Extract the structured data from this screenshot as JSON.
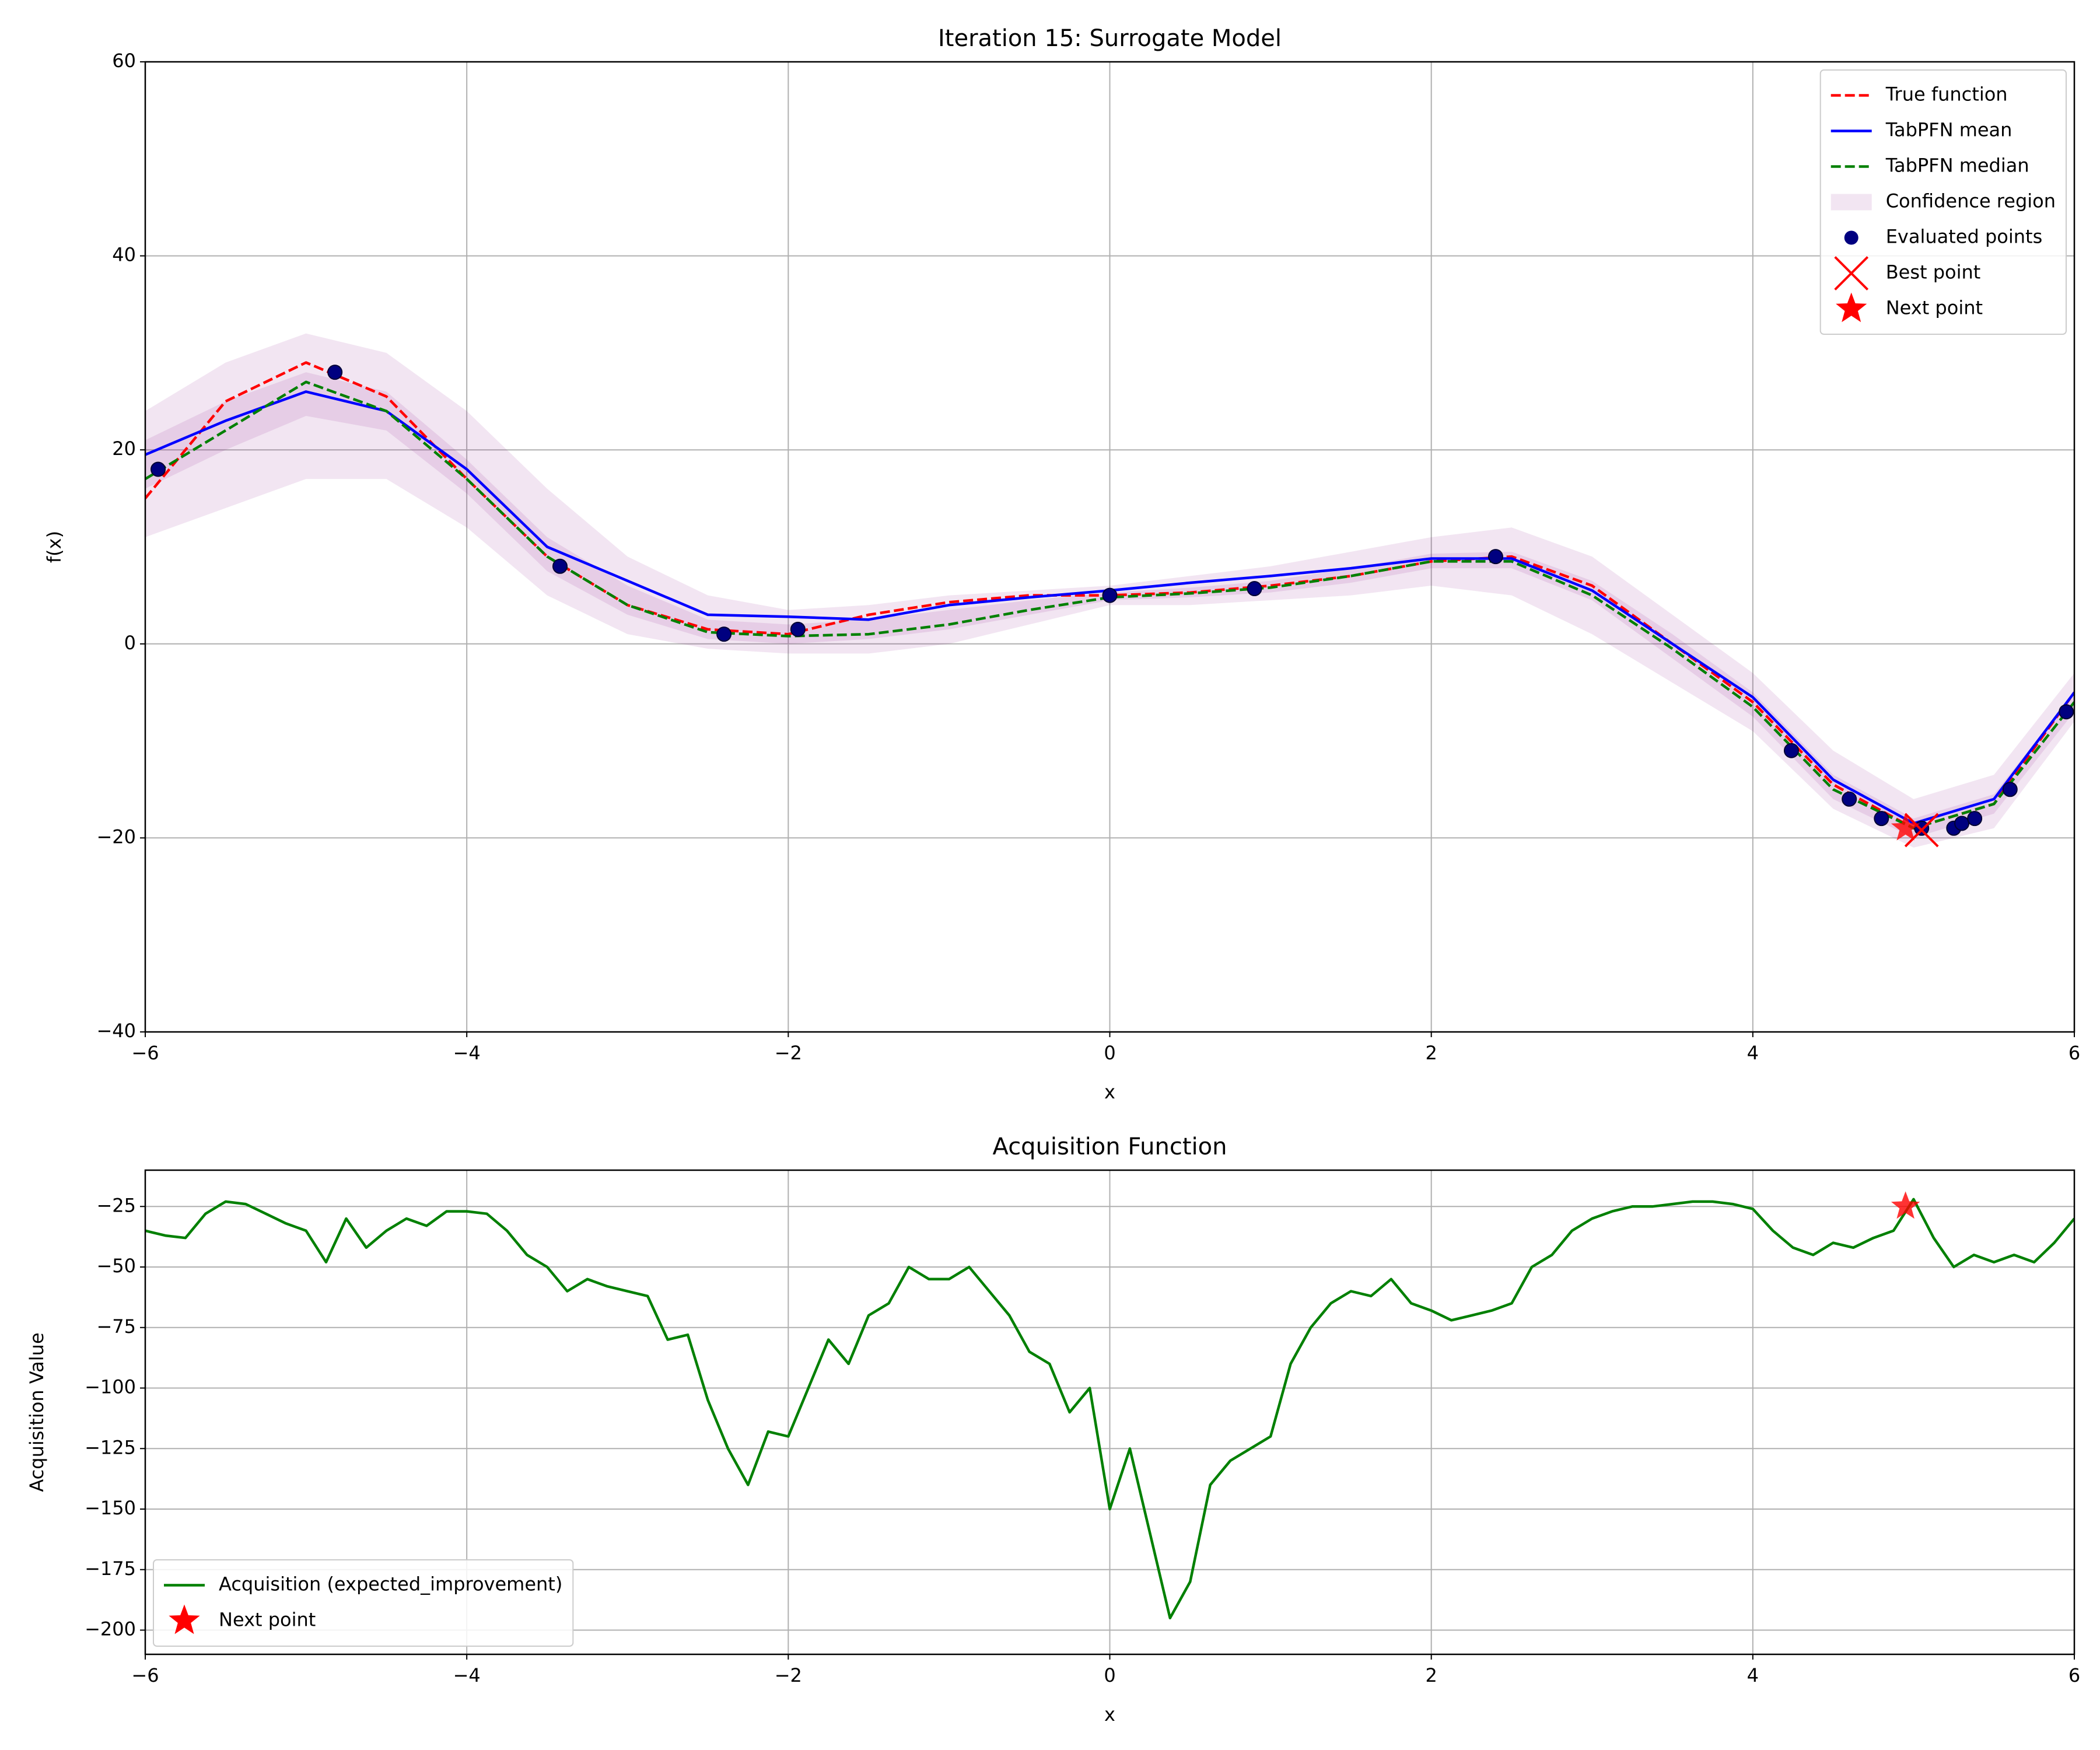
{
  "chart_data": [
    {
      "type": "line",
      "title": "Iteration 15: Surrogate Model",
      "xlabel": "x",
      "ylabel": "f(x)",
      "xlim": [
        -6,
        6
      ],
      "ylim": [
        -40,
        60
      ],
      "xticks": [
        {
          "value": -6,
          "label": "−6"
        },
        {
          "value": -4,
          "label": "−4"
        },
        {
          "value": -2,
          "label": "−2"
        },
        0,
        2,
        4,
        6
      ],
      "yticks": [
        {
          "value": -40,
          "label": "−40"
        },
        {
          "value": -20,
          "label": "−20"
        },
        0,
        20,
        40,
        60
      ],
      "grid": true,
      "legend": "upper right",
      "x": [
        -6,
        -5.5,
        -5,
        -4.5,
        -4,
        -3.5,
        -3,
        -2.5,
        -2,
        -1.5,
        -1,
        -0.5,
        0,
        0.5,
        1,
        1.5,
        2,
        2.5,
        3,
        3.5,
        4,
        4.5,
        5,
        5.5,
        6
      ],
      "series": [
        {
          "name": "True function",
          "type": "line",
          "style": "dashed",
          "color": "#ff0000",
          "values": [
            15,
            25,
            29,
            25.5,
            17,
            9,
            4,
            1.5,
            1,
            3,
            4.3,
            5,
            5,
            5.3,
            6,
            7,
            8.5,
            9,
            6,
            0,
            -6,
            -14.5,
            -19,
            -16.5,
            -5
          ]
        },
        {
          "name": "TabPFN mean",
          "type": "line",
          "style": "solid",
          "color": "#0000ff",
          "values": [
            19.5,
            23,
            26,
            24,
            18,
            10,
            6.5,
            3,
            2.8,
            2.5,
            4,
            4.8,
            5.5,
            6.3,
            7,
            7.8,
            8.8,
            8.8,
            5.5,
            0,
            -5.5,
            -14,
            -18.5,
            -16,
            -5
          ]
        },
        {
          "name": "TabPFN median",
          "type": "line",
          "style": "dashed",
          "color": "#008000",
          "values": [
            17,
            22,
            27,
            24,
            17,
            9,
            4,
            1.2,
            0.8,
            1,
            2,
            3.5,
            4.8,
            5.2,
            5.8,
            7,
            8.5,
            8.5,
            5,
            -0.5,
            -6.5,
            -15,
            -19,
            -16.5,
            -6
          ]
        },
        {
          "name": "Confidence region",
          "type": "band",
          "color": "#800080",
          "alpha": 0.1,
          "bands": [
            {
              "upper": [
                24,
                29,
                32,
                30,
                24,
                16,
                9,
                5,
                3.5,
                4,
                5,
                5.5,
                6,
                7,
                8,
                9.5,
                11,
                12,
                9,
                3,
                -3,
                -11,
                -16,
                -13.5,
                -3
              ],
              "lower": [
                11,
                14,
                17,
                17,
                12,
                5,
                1,
                -0.5,
                -1,
                -1,
                0,
                2,
                4,
                4,
                4.5,
                5,
                6,
                5,
                1,
                -4,
                -9,
                -17,
                -21,
                -19,
                -8
              ]
            },
            {
              "upper": [
                21,
                25,
                28,
                26,
                19,
                11,
                6,
                2.5,
                2,
                2.5,
                3.5,
                4.5,
                5.3,
                5.8,
                6.5,
                7.8,
                9.3,
                9.5,
                6.5,
                1,
                -5,
                -13.5,
                -18,
                -15.5,
                -5
              ],
              "lower": [
                16,
                20,
                23.5,
                22,
                15.5,
                7.5,
                3,
                0.5,
                0,
                0.5,
                1.5,
                3,
                4.5,
                4.8,
                5.3,
                6.3,
                7.8,
                7.8,
                4.5,
                -1.5,
                -7.5,
                -16,
                -20,
                -17.5,
                -7
              ]
            }
          ]
        },
        {
          "name": "Evaluated points",
          "type": "scatter",
          "marker": "o",
          "color": "#000080",
          "x": [
            -5.92,
            -4.82,
            -3.42,
            -2.4,
            -1.94,
            0,
            0.9,
            2.4,
            4.24,
            4.6,
            4.8,
            5.05,
            5.25,
            5.3,
            5.38,
            5.6,
            5.95
          ],
          "values": [
            18,
            28,
            8,
            1,
            1.5,
            5,
            5.7,
            9,
            -11,
            -16,
            -18,
            -19,
            -19,
            -18.5,
            -18,
            -15,
            -7
          ]
        },
        {
          "name": "Best point",
          "type": "scatter",
          "marker": "x",
          "color": "#ff0000",
          "x": [
            5.05
          ],
          "values": [
            -19.2
          ]
        },
        {
          "name": "Next point",
          "type": "scatter",
          "marker": "*",
          "color": "#ff0000",
          "x": [
            4.95
          ],
          "values": [
            -19
          ]
        }
      ]
    },
    {
      "type": "line",
      "title": "Acquisition Function",
      "xlabel": "x",
      "ylabel": "Acquisition Value",
      "xlim": [
        -6,
        6
      ],
      "ylim": [
        -210,
        -10
      ],
      "xticks": [
        {
          "value": -6,
          "label": "−6"
        },
        {
          "value": -4,
          "label": "−4"
        },
        {
          "value": -2,
          "label": "−2"
        },
        0,
        2,
        4,
        6
      ],
      "yticks": [
        {
          "value": -200,
          "label": "−200"
        },
        {
          "value": -175,
          "label": "−175"
        },
        {
          "value": -150,
          "label": "−150"
        },
        {
          "value": -125,
          "label": "−125"
        },
        {
          "value": -100,
          "label": "−100"
        },
        {
          "value": -75,
          "label": "−75"
        },
        {
          "value": -50,
          "label": "−50"
        },
        {
          "value": -25,
          "label": "−25"
        }
      ],
      "grid": true,
      "legend": "lower left",
      "x": [
        -6,
        -5.875,
        -5.75,
        -5.625,
        -5.5,
        -5.375,
        -5.25,
        -5.125,
        -5,
        -4.875,
        -4.75,
        -4.625,
        -4.5,
        -4.375,
        -4.25,
        -4.125,
        -4,
        -3.875,
        -3.75,
        -3.625,
        -3.5,
        -3.375,
        -3.25,
        -3.125,
        -3,
        -2.875,
        -2.75,
        -2.625,
        -2.5,
        -2.375,
        -2.25,
        -2.125,
        -2,
        -1.875,
        -1.75,
        -1.625,
        -1.5,
        -1.375,
        -1.25,
        -1.125,
        -1,
        -0.875,
        -0.75,
        -0.625,
        -0.5,
        -0.375,
        -0.25,
        -0.125,
        0,
        0.125,
        0.25,
        0.375,
        0.5,
        0.625,
        0.75,
        0.875,
        1,
        1.125,
        1.25,
        1.375,
        1.5,
        1.625,
        1.75,
        1.875,
        2,
        2.125,
        2.25,
        2.375,
        2.5,
        2.625,
        2.75,
        2.875,
        3,
        3.125,
        3.25,
        3.375,
        3.5,
        3.625,
        3.75,
        3.875,
        4,
        4.125,
        4.25,
        4.375,
        4.5,
        4.625,
        4.75,
        4.875,
        5,
        5.125,
        5.25,
        5.375,
        5.5,
        5.625,
        5.75,
        5.875,
        6
      ],
      "series": [
        {
          "name": "Acquisition (expected_improvement)",
          "type": "line",
          "style": "solid",
          "color": "#008000",
          "values": [
            -35,
            -37,
            -38,
            -28,
            -23,
            -24,
            -28,
            -32,
            -35,
            -48,
            -30,
            -42,
            -35,
            -30,
            -33,
            -27,
            -27,
            -28,
            -35,
            -45,
            -50,
            -60,
            -55,
            -58,
            -60,
            -62,
            -80,
            -78,
            -105,
            -125,
            -140,
            -118,
            -120,
            -100,
            -80,
            -90,
            -70,
            -65,
            -50,
            -55,
            -55,
            -50,
            -60,
            -70,
            -85,
            -90,
            -110,
            -100,
            -150,
            -125,
            -160,
            -195,
            -180,
            -140,
            -130,
            -125,
            -120,
            -90,
            -75,
            -65,
            -60,
            -62,
            -55,
            -65,
            -68,
            -72,
            -70,
            -68,
            -65,
            -50,
            -45,
            -35,
            -30,
            -27,
            -25,
            -25,
            -24,
            -23,
            -23,
            -24,
            -26,
            -35,
            -42,
            -45,
            -40,
            -42,
            -38,
            -35,
            -22,
            -38,
            -50,
            -45,
            -48,
            -45,
            -48,
            -40,
            -30
          ]
        },
        {
          "name": "Next point",
          "type": "scatter",
          "marker": "*",
          "color": "#ff0000",
          "x": [
            4.95
          ],
          "values": [
            -25
          ]
        }
      ]
    }
  ]
}
